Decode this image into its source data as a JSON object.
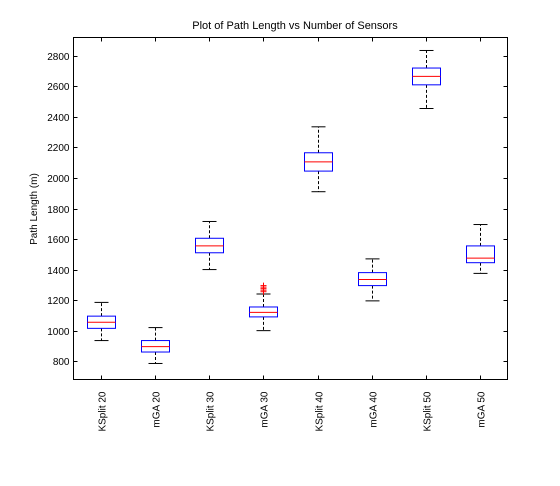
{
  "chart_data": {
    "type": "box",
    "title": "Plot of Path Length vs Number of Sensors",
    "xlabel": "",
    "ylabel": "Path Length (m)",
    "ylim": [
      680,
      2920
    ],
    "yticks": [
      800,
      1000,
      1200,
      1400,
      1600,
      1800,
      2000,
      2200,
      2400,
      2600,
      2800
    ],
    "grid": false,
    "categories": [
      "KSplit 20",
      "mGA 20",
      "KSplit 30",
      "mGA 30",
      "KSplit 40",
      "mGA 40",
      "KSplit 50",
      "mGA 50"
    ],
    "boxes": [
      {
        "label": "KSplit 20",
        "whisker_low": 935,
        "q1": 1015,
        "median": 1055,
        "q3": 1095,
        "whisker_high": 1185,
        "outliers": []
      },
      {
        "label": "mGA 20",
        "whisker_low": 785,
        "q1": 860,
        "median": 895,
        "q3": 935,
        "whisker_high": 1020,
        "outliers": []
      },
      {
        "label": "KSplit 30",
        "whisker_low": 1400,
        "q1": 1510,
        "median": 1555,
        "q3": 1605,
        "whisker_high": 1715,
        "outliers": []
      },
      {
        "label": "mGA 30",
        "whisker_low": 1000,
        "q1": 1090,
        "median": 1120,
        "q3": 1155,
        "whisker_high": 1240,
        "outliers": [
          1255,
          1265,
          1275,
          1285,
          1295
        ]
      },
      {
        "label": "KSplit 40",
        "whisker_low": 1910,
        "q1": 2045,
        "median": 2105,
        "q3": 2165,
        "whisker_high": 2335,
        "outliers": []
      },
      {
        "label": "mGA 40",
        "whisker_low": 1195,
        "q1": 1295,
        "median": 1335,
        "q3": 1380,
        "whisker_high": 1470,
        "outliers": []
      },
      {
        "label": "KSplit 50",
        "whisker_low": 2455,
        "q1": 2610,
        "median": 2665,
        "q3": 2720,
        "whisker_high": 2835,
        "outliers": []
      },
      {
        "label": "mGA 50",
        "whisker_low": 1375,
        "q1": 1445,
        "median": 1475,
        "q3": 1555,
        "whisker_high": 1695,
        "outliers": []
      }
    ],
    "colors": {
      "box": "#0000ff",
      "median": "#ff0000",
      "whisker": "#000000",
      "outlier": "#ff0000"
    }
  }
}
